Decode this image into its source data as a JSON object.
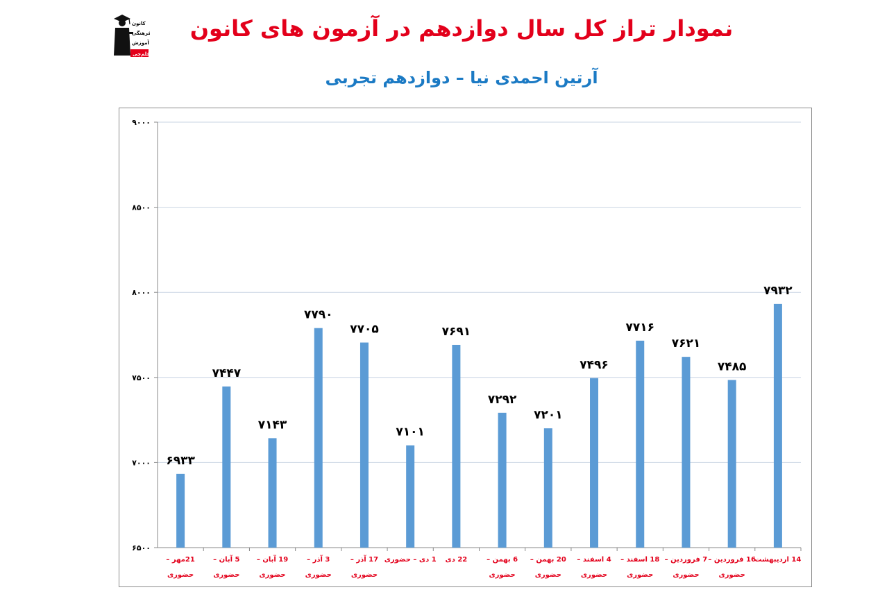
{
  "header": {
    "title": "نمودار تراز کل سال دوازدهم در آزمون های کانون",
    "subtitle": "آرتین احمدی نیا – دوازدهم تجربی",
    "logo_text": [
      "کانون",
      "فرهنگی",
      "آموزش",
      "قلم‌چی"
    ]
  },
  "colors": {
    "bar": "#5b9bd5",
    "title": "#e3001b",
    "subtitle": "#1b7ac4",
    "category_label": "#e3001b",
    "gridline": "#c9d4e3"
  },
  "chart_data": {
    "type": "bar",
    "ylim": [
      6500,
      9000
    ],
    "yticks": [
      6500,
      7000,
      7500,
      8000,
      8500,
      9000
    ],
    "ytick_labels": [
      "۶۵۰۰",
      "۷۰۰۰",
      "۷۵۰۰",
      "۸۰۰۰",
      "۸۵۰۰",
      "۹۰۰۰"
    ],
    "grid": true,
    "categories": [
      [
        "21مهر –",
        "حضوری"
      ],
      [
        "5 آبان –",
        "حضوری"
      ],
      [
        "19 آبان –",
        "حضوری"
      ],
      [
        "3 آذر –",
        "حضوری"
      ],
      [
        "17 آذر –",
        "حضوری"
      ],
      [
        "1 دی – حضوری"
      ],
      [
        "22 دی"
      ],
      [
        "6 بهمن –",
        "حضوری"
      ],
      [
        "20 بهمن –",
        "حضوری"
      ],
      [
        "4 اسفند –",
        "حضوری"
      ],
      [
        "18 اسفند –",
        "حضوری"
      ],
      [
        "7 فروردین –",
        "حضوری"
      ],
      [
        "16 فروردین –",
        "حضوری"
      ],
      [
        "14 اردیبهشت"
      ]
    ],
    "values": [
      6933,
      7447,
      7143,
      7790,
      7705,
      7101,
      7691,
      7292,
      7201,
      7496,
      7716,
      7621,
      7485,
      7932
    ],
    "value_labels": [
      "۶۹۳۳",
      "۷۴۴۷",
      "۷۱۴۳",
      "۷۷۹۰",
      "۷۷۰۵",
      "۷۱۰۱",
      "۷۶۹۱",
      "۷۲۹۲",
      "۷۲۰۱",
      "۷۴۹۶",
      "۷۷۱۶",
      "۷۶۲۱",
      "۷۴۸۵",
      "۷۹۳۲"
    ]
  }
}
